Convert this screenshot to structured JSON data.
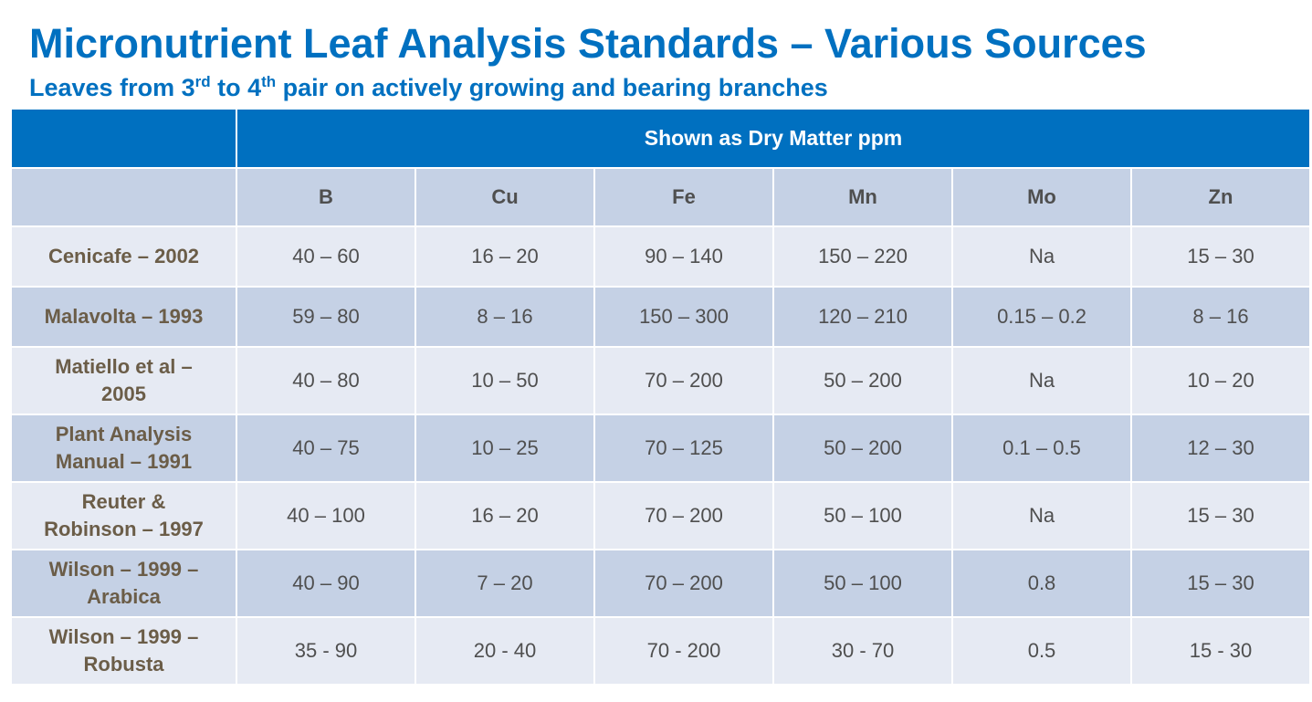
{
  "title": "Micronutrient Leaf Analysis Standards – Various Sources",
  "subtitle": {
    "part1": "Leaves from 3",
    "sup1": "rd",
    "part2": " to 4",
    "sup2": "th",
    "part3": " pair on actively growing and bearing branches"
  },
  "table": {
    "group_header": "Shown as Dry Matter ppm",
    "columns": [
      "B",
      "Cu",
      "Fe",
      "Mn",
      "Mo",
      "Zn"
    ],
    "rows": [
      {
        "source": [
          "Cenicafe – 2002"
        ],
        "values": [
          "40 – 60",
          "16 – 20",
          "90 – 140",
          "150 – 220",
          "Na",
          "15 – 30"
        ]
      },
      {
        "source": [
          "Malavolta – 1993"
        ],
        "values": [
          "59 – 80",
          "8 – 16",
          "150 – 300",
          "120 – 210",
          "0.15 – 0.2",
          "8 – 16"
        ]
      },
      {
        "source": [
          "Matiello et al –",
          "2005"
        ],
        "values": [
          "40 – 80",
          "10 – 50",
          "70 – 200",
          "50 – 200",
          "Na",
          "10 – 20"
        ]
      },
      {
        "source": [
          "Plant Analysis",
          "Manual – 1991"
        ],
        "values": [
          "40 – 75",
          "10 – 25",
          "70 – 125",
          "50 – 200",
          "0.1 – 0.5",
          "12 – 30"
        ]
      },
      {
        "source": [
          "Reuter &",
          "Robinson – 1997"
        ],
        "values": [
          "40 – 100",
          "16 – 20",
          "70 – 200",
          "50 – 100",
          "Na",
          "15 – 30"
        ]
      },
      {
        "source": [
          "Wilson – 1999 –",
          "Arabica"
        ],
        "values": [
          "40 – 90",
          "7 – 20",
          "70 – 200",
          "50 – 100",
          "0.8",
          "15 – 30"
        ]
      },
      {
        "source": [
          "Wilson – 1999 –",
          "Robusta"
        ],
        "values": [
          "35 - 90",
          "20 - 40",
          "70 - 200",
          "30 - 70",
          "0.5",
          "15 - 30"
        ]
      }
    ]
  },
  "colors": {
    "accent": "#0070c0",
    "header_row": "#c5d1e5",
    "row_light": "#e6eaf3",
    "source_text": "#6b5d48"
  }
}
